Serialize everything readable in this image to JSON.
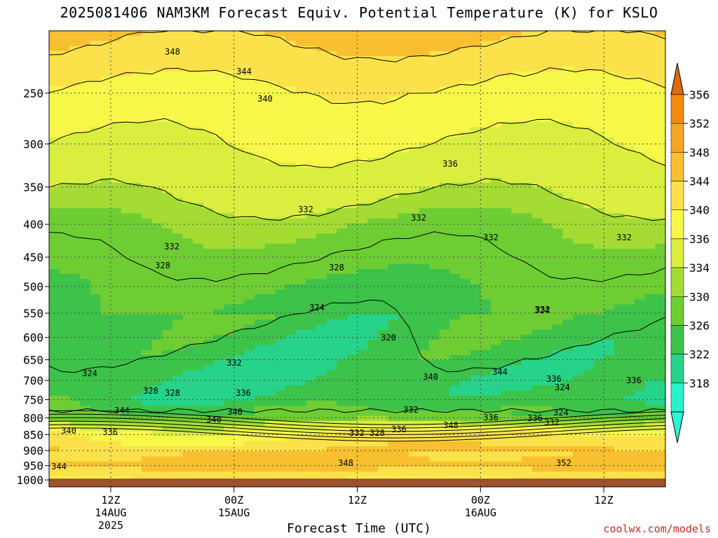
{
  "title": "2025081406 NAM3KM Forecast Equiv. Potential Temperature (K) for KSLO",
  "credit": "coolwx.com/models",
  "chart_data": {
    "type": "heatmap",
    "title": "2025081406 NAM3KM Forecast Equiv. Potential Temperature (K) for KSLO",
    "xlabel": "Forecast Time (UTC)",
    "ylabel": "",
    "x_ticks": [
      {
        "line1": "12Z",
        "line2": "14AUG",
        "line3": "2025",
        "hours": 6
      },
      {
        "line1": "00Z",
        "line2": "15AUG",
        "line3": "",
        "hours": 18
      },
      {
        "line1": "12Z",
        "line2": "",
        "line3": "",
        "hours": 30
      },
      {
        "line1": "00Z",
        "line2": "16AUG",
        "line3": "",
        "hours": 42
      },
      {
        "line1": "12Z",
        "line2": "",
        "line3": "",
        "hours": 54
      }
    ],
    "xlim_hours": [
      0,
      60
    ],
    "y_ticks": [
      250,
      300,
      350,
      400,
      450,
      500,
      550,
      600,
      650,
      700,
      750,
      800,
      850,
      900,
      950,
      1000
    ],
    "ylim_hPa": [
      200,
      1025
    ],
    "y_scale": "log-pressure",
    "colorbar": {
      "ticks": [
        356,
        352,
        348,
        344,
        340,
        336,
        334,
        330,
        326,
        322,
        318
      ],
      "colors": [
        "#f28c0a",
        "#f5a623",
        "#f8c030",
        "#fbe24a",
        "#f7f74a",
        "#d9ee3f",
        "#a4dc34",
        "#6fcd34",
        "#3dc24a",
        "#27d38a",
        "#2af2c8"
      ],
      "arrow_colors": {
        "top": "#e06a05",
        "bottom": "#2af5d5"
      }
    },
    "contour_labels": [
      "348",
      "344",
      "340",
      "336",
      "332",
      "332",
      "332",
      "332",
      "332",
      "328",
      "328",
      "324",
      "324",
      "320",
      "324",
      "328",
      "328",
      "332",
      "336",
      "340",
      "340",
      "344",
      "340",
      "336",
      "332",
      "328",
      "336",
      "340",
      "344",
      "332",
      "336",
      "336",
      "332",
      "324",
      "336",
      "336",
      "348",
      "348",
      "352",
      "344",
      "324",
      "332"
    ],
    "profile": {
      "pressure": [
        200,
        250,
        300,
        350,
        400,
        450,
        500,
        550,
        600,
        650,
        700,
        750,
        800,
        850,
        900,
        950,
        1000
      ],
      "theta_e": [
        349,
        343,
        340,
        337,
        334,
        332,
        330,
        329,
        328,
        327,
        326,
        327,
        332,
        344,
        348,
        350,
        344
      ]
    },
    "grid": true,
    "surface_band": {
      "color": "#a0522d"
    }
  }
}
